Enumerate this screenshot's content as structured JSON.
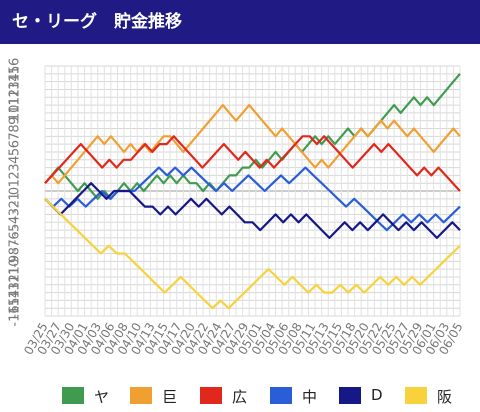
{
  "header": {
    "title": "セ・リーグ　貯金推移"
  },
  "chart_data": {
    "type": "line",
    "ylim": [
      -16,
      16
    ],
    "yticks": [
      "16",
      "15",
      "14",
      "13",
      "12",
      "11",
      "10",
      "9",
      "8",
      "7",
      "6",
      "5",
      "4",
      "3",
      "2",
      "1",
      "0",
      "-1",
      "-2",
      "-3",
      "-4",
      "-5",
      "-6",
      "-7",
      "-8",
      "-9",
      "-10",
      "-11",
      "-12",
      "-13",
      "-14",
      "-15",
      "-16"
    ],
    "xticks": [
      "03/25",
      "03/27",
      "03/30",
      "04/01",
      "04/03",
      "04/06",
      "04/08",
      "04/10",
      "04/13",
      "04/15",
      "04/17",
      "04/20",
      "04/22",
      "04/24",
      "04/27",
      "04/29",
      "05/01",
      "05/04",
      "05/06",
      "05/08",
      "05/11",
      "05/13",
      "05/15",
      "05/18",
      "05/20",
      "05/22",
      "05/25",
      "05/27",
      "05/29",
      "06/01",
      "06/03",
      "06/05"
    ],
    "grid": true,
    "legend": "bottom",
    "series": [
      {
        "name": "ヤ",
        "color": "#3f9c4f",
        "values": [
          1,
          2,
          3,
          2,
          1,
          0,
          1,
          0,
          -1,
          0,
          -1,
          0,
          1,
          0,
          1,
          0,
          1,
          2,
          1,
          2,
          1,
          2,
          1,
          1,
          0,
          1,
          0,
          1,
          2,
          2,
          3,
          3,
          4,
          3,
          4,
          5,
          4,
          5,
          6,
          5,
          6,
          7,
          6,
          7,
          6,
          7,
          8,
          7,
          8,
          7,
          8,
          9,
          10,
          11,
          10,
          11,
          12,
          11,
          12,
          11,
          12,
          13,
          14,
          15
        ]
      },
      {
        "name": "巨",
        "color": "#f0a030",
        "values": [
          1,
          2,
          1,
          2,
          3,
          4,
          5,
          6,
          7,
          6,
          7,
          6,
          5,
          6,
          5,
          6,
          5,
          6,
          7,
          7,
          6,
          5,
          6,
          7,
          8,
          9,
          10,
          11,
          10,
          9,
          10,
          11,
          10,
          9,
          8,
          7,
          8,
          7,
          6,
          5,
          4,
          3,
          4,
          3,
          4,
          5,
          6,
          7,
          8,
          7,
          8,
          9,
          8,
          9,
          8,
          7,
          8,
          7,
          6,
          5,
          6,
          7,
          8,
          7
        ]
      },
      {
        "name": "広",
        "color": "#e0281c",
        "values": [
          1,
          2,
          3,
          4,
          5,
          6,
          5,
          4,
          3,
          4,
          3,
          4,
          4,
          5,
          6,
          5,
          6,
          6,
          7,
          6,
          5,
          4,
          3,
          4,
          5,
          6,
          5,
          4,
          5,
          4,
          3,
          4,
          3,
          4,
          5,
          6,
          7,
          7,
          6,
          7,
          6,
          5,
          4,
          3,
          4,
          5,
          6,
          5,
          6,
          5,
          4,
          3,
          2,
          3,
          2,
          3,
          2,
          1,
          0
        ]
      },
      {
        "name": "中",
        "color": "#2a5ed8",
        "values": [
          -1,
          -2,
          -1,
          -2,
          -1,
          -2,
          -1,
          0,
          -1,
          0,
          0,
          0,
          1,
          2,
          3,
          2,
          3,
          2,
          3,
          2,
          1,
          0,
          1,
          0,
          1,
          2,
          1,
          0,
          1,
          2,
          1,
          2,
          3,
          2,
          1,
          0,
          -1,
          -2,
          -1,
          -2,
          -3,
          -4,
          -5,
          -4,
          -3,
          -4,
          -3,
          -4,
          -3,
          -4,
          -3,
          -2
        ]
      },
      {
        "name": "D",
        "color": "#161887",
        "values": [
          -1,
          -2,
          -3,
          -2,
          -1,
          0,
          1,
          0,
          -1,
          0,
          0,
          0,
          -1,
          -2,
          -2,
          -3,
          -2,
          -3,
          -2,
          -1,
          -2,
          -1,
          -2,
          -3,
          -2,
          -3,
          -4,
          -4,
          -5,
          -4,
          -3,
          -4,
          -3,
          -4,
          -3,
          -4,
          -5,
          -6,
          -5,
          -4,
          -5,
          -4,
          -5,
          -4,
          -3,
          -4,
          -5,
          -4,
          -5,
          -4,
          -5,
          -6,
          -5,
          -4,
          -5
        ]
      },
      {
        "name": "阪",
        "color": "#f7d23c",
        "values": [
          -1,
          -2,
          -3,
          -4,
          -5,
          -6,
          -7,
          -8,
          -7,
          -8,
          -8,
          -9,
          -10,
          -11,
          -12,
          -13,
          -12,
          -11,
          -12,
          -13,
          -14,
          -15,
          -14,
          -15,
          -14,
          -13,
          -12,
          -11,
          -10,
          -11,
          -12,
          -11,
          -12,
          -13,
          -12,
          -13,
          -13,
          -12,
          -13,
          -12,
          -13,
          -12,
          -11,
          -12,
          -11,
          -12,
          -11,
          -12,
          -11,
          -10,
          -9,
          -8,
          -7
        ]
      }
    ]
  }
}
